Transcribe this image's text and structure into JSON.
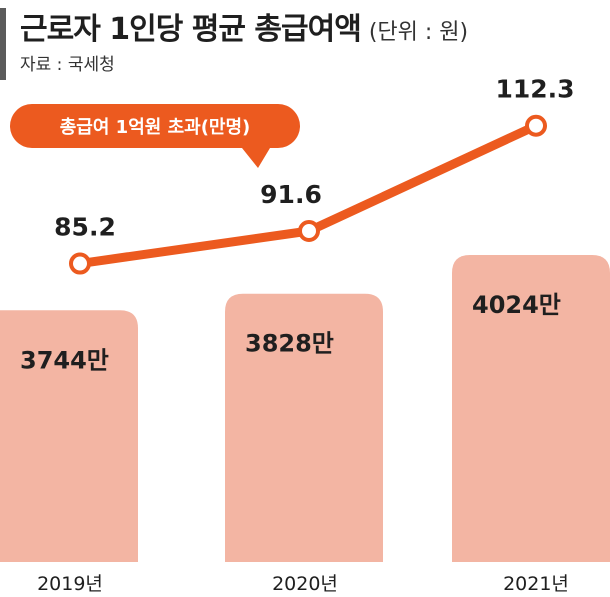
{
  "header": {
    "title": "근로자 1인당 평균 총급여액",
    "unit": "(단위 : 원)",
    "source": "자료 : 국세청"
  },
  "colors": {
    "bar": "#f3b5a3",
    "line": "#ec5a1f",
    "text": "#1f1f1f"
  },
  "chart_data": {
    "type": "bar",
    "categories": [
      "2019년",
      "2020년",
      "2021년"
    ],
    "series": [
      {
        "type": "bar",
        "values": [
          3744,
          3828,
          4024
        ],
        "labels": [
          "3744만",
          "3828만",
          "4024만"
        ]
      },
      {
        "name": "총급여 1억원 초과(만명)",
        "type": "line",
        "values": [
          85.2,
          91.6,
          112.3
        ],
        "labels": [
          "85.2",
          "91.6",
          "112.3"
        ]
      }
    ],
    "callout": "총급여 1억원 초과(만명)"
  }
}
